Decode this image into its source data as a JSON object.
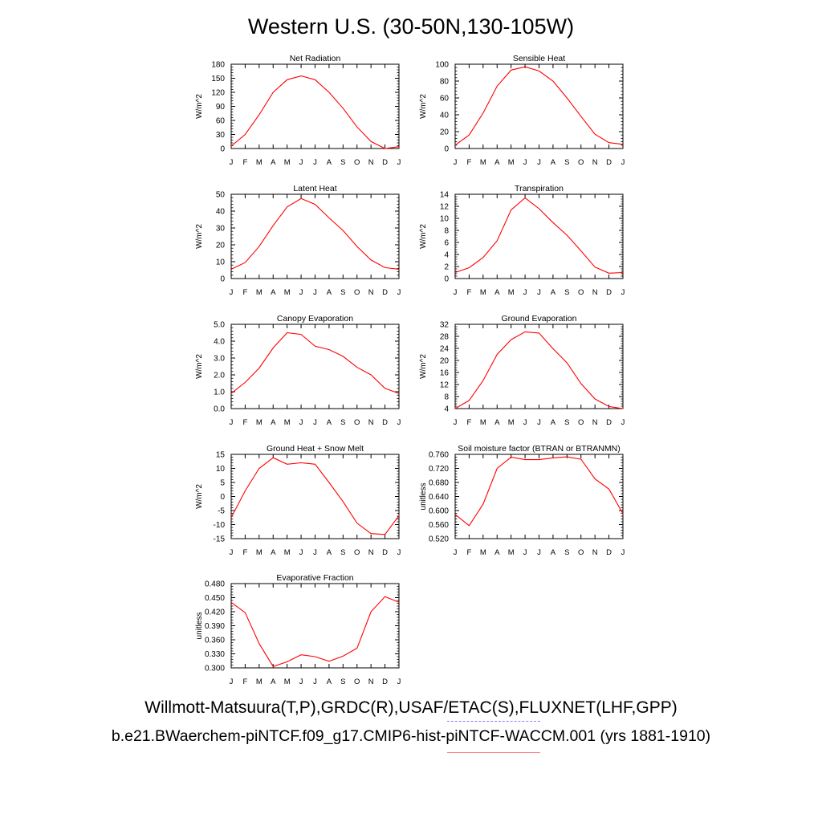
{
  "page": {
    "title": "Western U.S. (30-50N,130-105W)"
  },
  "legend": {
    "observations": "Willmott-Matsuura(T,P),GRDC(R),USAF/ETAC(S),FLUXNET(LHF,GPP)",
    "model": "b.e21.BWaerchem-piNTCF.f09_g17.CMIP6-hist-piNTCF-WACCM.001 (yrs 1881-1910)",
    "observations_color": "#8080ff",
    "model_color": "#ff8080"
  },
  "colors": {
    "line": "#ff0000",
    "axis": "#000000"
  },
  "chart_data": [
    {
      "type": "line",
      "title": "Net Radiation",
      "ylabel": "W/m^2",
      "categories": [
        "J",
        "F",
        "M",
        "A",
        "M",
        "J",
        "J",
        "A",
        "S",
        "O",
        "N",
        "D",
        "J"
      ],
      "ylim": [
        0,
        180
      ],
      "yticks": [
        "0",
        "30",
        "60",
        "90",
        "120",
        "150",
        "180"
      ],
      "series": [
        {
          "values": [
            5,
            30,
            72,
            120,
            147,
            155,
            147,
            120,
            86,
            46,
            15,
            0,
            4
          ]
        }
      ]
    },
    {
      "type": "line",
      "title": "Sensible Heat",
      "ylabel": "W/m^2",
      "categories": [
        "J",
        "F",
        "M",
        "A",
        "M",
        "J",
        "J",
        "A",
        "S",
        "O",
        "N",
        "D",
        "J"
      ],
      "ylim": [
        0,
        100
      ],
      "yticks": [
        "0",
        "20",
        "40",
        "60",
        "80",
        "100"
      ],
      "series": [
        {
          "values": [
            4,
            16,
            42,
            74,
            93,
            97,
            92,
            80,
            60,
            38,
            17,
            7,
            5
          ]
        }
      ]
    },
    {
      "type": "line",
      "title": "Latent Heat",
      "ylabel": "W/m^2",
      "categories": [
        "J",
        "F",
        "M",
        "A",
        "M",
        "J",
        "J",
        "A",
        "S",
        "O",
        "N",
        "D",
        "J"
      ],
      "ylim": [
        0,
        50
      ],
      "yticks": [
        "0",
        "10",
        "20",
        "30",
        "40",
        "50"
      ],
      "series": [
        {
          "values": [
            5.5,
            9.5,
            19,
            31.5,
            42.5,
            47.5,
            44,
            36,
            28.5,
            19,
            11,
            6.5,
            5.5
          ]
        }
      ]
    },
    {
      "type": "line",
      "title": "Transpiration",
      "ylabel": "W/m^2",
      "categories": [
        "J",
        "F",
        "M",
        "A",
        "M",
        "J",
        "J",
        "A",
        "S",
        "O",
        "N",
        "D",
        "J"
      ],
      "ylim": [
        0,
        14
      ],
      "yticks": [
        "0",
        "2",
        "4",
        "6",
        "8",
        "10",
        "12",
        "14"
      ],
      "series": [
        {
          "values": [
            1.0,
            1.8,
            3.5,
            6.3,
            11.4,
            13.4,
            11.6,
            9.3,
            7.2,
            4.6,
            1.9,
            0.9,
            1.0
          ]
        }
      ]
    },
    {
      "type": "line",
      "title": "Canopy Evaporation",
      "ylabel": "W/m^2",
      "categories": [
        "J",
        "F",
        "M",
        "A",
        "M",
        "J",
        "J",
        "A",
        "S",
        "O",
        "N",
        "D",
        "J"
      ],
      "ylim": [
        0,
        5
      ],
      "yticks": [
        "0.0",
        "1.0",
        "2.0",
        "3.0",
        "4.0",
        "5.0"
      ],
      "series": [
        {
          "values": [
            0.9,
            1.55,
            2.4,
            3.6,
            4.5,
            4.4,
            3.7,
            3.5,
            3.1,
            2.45,
            2.0,
            1.2,
            0.9
          ]
        }
      ]
    },
    {
      "type": "line",
      "title": "Ground Evaporation",
      "ylabel": "W/m^2",
      "categories": [
        "J",
        "F",
        "M",
        "A",
        "M",
        "J",
        "J",
        "A",
        "S",
        "O",
        "N",
        "D",
        "J"
      ],
      "ylim": [
        4,
        32
      ],
      "yticks": [
        "4",
        "8",
        "12",
        "16",
        "20",
        "24",
        "28",
        "32"
      ],
      "series": [
        {
          "values": [
            4.0,
            6.7,
            13.3,
            22.0,
            26.9,
            29.5,
            29.1,
            23.9,
            19.2,
            12.3,
            7.2,
            4.7,
            4.0
          ]
        }
      ]
    },
    {
      "type": "line",
      "title": "Ground Heat + Snow Melt",
      "ylabel": "W/m^2",
      "categories": [
        "J",
        "F",
        "M",
        "A",
        "M",
        "J",
        "J",
        "A",
        "S",
        "O",
        "N",
        "D",
        "J"
      ],
      "ylim": [
        -15,
        15
      ],
      "yticks": [
        "-15",
        "-10",
        "-5",
        "0",
        "5",
        "10",
        "15"
      ],
      "series": [
        {
          "values": [
            -7.5,
            2,
            10,
            13.8,
            11.5,
            12,
            11.5,
            5,
            -1.8,
            -9.5,
            -13.2,
            -13.5,
            -6.8
          ]
        }
      ]
    },
    {
      "type": "line",
      "title": "Soil moisture factor (BTRAN or BTRANMN)",
      "ylabel": "unitless",
      "categories": [
        "J",
        "F",
        "M",
        "A",
        "M",
        "J",
        "J",
        "A",
        "S",
        "O",
        "N",
        "D",
        "J"
      ],
      "ylim": [
        0.52,
        0.76
      ],
      "yticks": [
        "0.520",
        "0.560",
        "0.600",
        "0.640",
        "0.680",
        "0.720",
        "0.760"
      ],
      "series": [
        {
          "values": [
            0.589,
            0.557,
            0.618,
            0.72,
            0.752,
            0.745,
            0.745,
            0.75,
            0.753,
            0.746,
            0.69,
            0.661,
            0.591
          ]
        }
      ]
    },
    {
      "type": "line",
      "title": "Evaporative Fraction",
      "ylabel": "unitless",
      "categories": [
        "J",
        "F",
        "M",
        "A",
        "M",
        "J",
        "J",
        "A",
        "S",
        "O",
        "N",
        "D",
        "J"
      ],
      "ylim": [
        0.3,
        0.48
      ],
      "yticks": [
        "0.300",
        "0.330",
        "0.360",
        "0.390",
        "0.420",
        "0.450",
        "0.480"
      ],
      "series": [
        {
          "values": [
            0.44,
            0.418,
            0.352,
            0.303,
            0.313,
            0.328,
            0.324,
            0.314,
            0.325,
            0.342,
            0.42,
            0.452,
            0.44
          ]
        }
      ]
    }
  ]
}
